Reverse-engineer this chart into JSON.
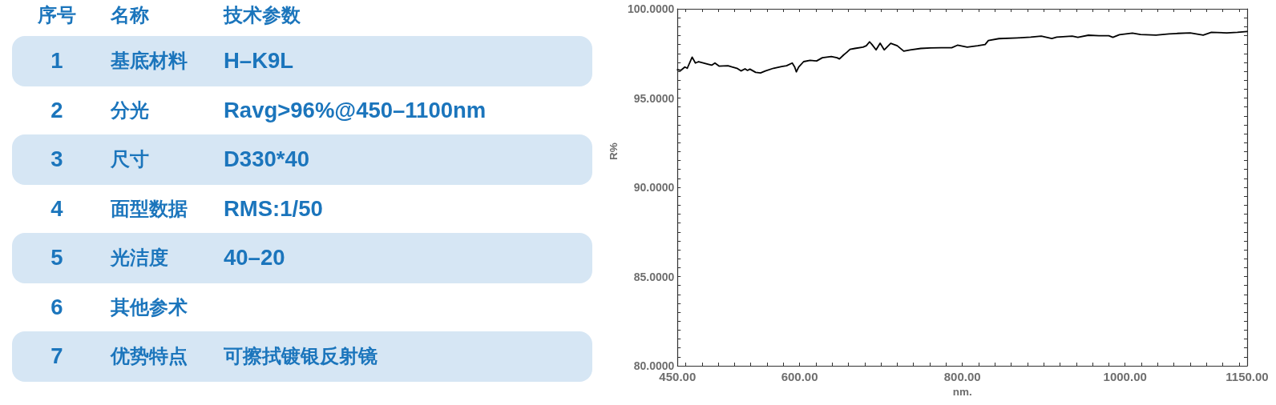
{
  "chart_data": [
    {
      "type": "heatmap",
      "ylabel": "序号",
      "categories": [
        "名称",
        "技术参数"
      ],
      "y_categories": [
        "1",
        "2",
        "3",
        "4",
        "5",
        "6",
        "7"
      ],
      "cells": [
        [
          null,
          null
        ],
        [
          null,
          null
        ],
        [
          null,
          null
        ],
        [
          null,
          null
        ],
        [
          null,
          null
        ],
        [
          null,
          null
        ],
        [
          null,
          null
        ]
      ],
      "cell_labels": [
        [
          "基底材料",
          "H–K9L"
        ],
        [
          "分光",
          "Ravg>96%@450–1100nm"
        ],
        [
          "尺寸",
          "D330*40"
        ],
        [
          "面型数据",
          "RMS:1/50"
        ],
        [
          "光洁度",
          "40–20"
        ],
        [
          "其他参术",
          null
        ],
        [
          "优势特点",
          "可擦拭镀银反射镜"
        ]
      ]
    },
    {
      "type": "line",
      "xlabel": "nm.",
      "ylabel": "R%",
      "color": "#000000",
      "marker": "none",
      "x": [
        450,
        454,
        459,
        462,
        468,
        472,
        476,
        488,
        492,
        496,
        501,
        512,
        517,
        523,
        528,
        533,
        536,
        539,
        546,
        552,
        558,
        568,
        578,
        584,
        591,
        594,
        596,
        599,
        605,
        613,
        621,
        628,
        639,
        646,
        649,
        654,
        658,
        662,
        668,
        678,
        682,
        686,
        689,
        694,
        699,
        704,
        712,
        720,
        728,
        736,
        749,
        761,
        774,
        787,
        794,
        806,
        819,
        828,
        832,
        845,
        868,
        884,
        897,
        910,
        916,
        935,
        942,
        955,
        968,
        980,
        985,
        993,
        1009,
        1019,
        1038,
        1054,
        1064,
        1080,
        1096,
        1106,
        1125,
        1138,
        1150
      ],
      "values": [
        96.59,
        96.55,
        96.74,
        96.67,
        97.29,
        96.96,
        97.04,
        96.89,
        96.84,
        96.96,
        96.79,
        96.81,
        96.74,
        96.67,
        96.52,
        96.64,
        96.55,
        96.62,
        96.44,
        96.41,
        96.52,
        96.67,
        96.77,
        96.81,
        96.96,
        96.74,
        96.47,
        96.74,
        97.04,
        97.11,
        97.08,
        97.26,
        97.33,
        97.26,
        97.19,
        97.41,
        97.56,
        97.73,
        97.78,
        97.85,
        97.93,
        98.15,
        98.0,
        97.7,
        98.07,
        97.7,
        98.07,
        97.93,
        97.63,
        97.7,
        97.78,
        97.81,
        97.82,
        97.82,
        97.96,
        97.85,
        97.93,
        98.0,
        98.22,
        98.33,
        98.37,
        98.41,
        98.47,
        98.34,
        98.41,
        98.47,
        98.4,
        98.52,
        98.49,
        98.49,
        98.4,
        98.55,
        98.64,
        98.56,
        98.53,
        98.59,
        98.62,
        98.65,
        98.53,
        98.68,
        98.65,
        98.68,
        98.73
      ],
      "xlim": [
        450,
        1150
      ],
      "xticks": [
        {
          "value": 450,
          "label": "450.00"
        },
        {
          "value": 460,
          "label": null
        },
        {
          "value": 480,
          "label": null
        },
        {
          "value": 500,
          "label": null
        },
        {
          "value": 520,
          "label": null
        },
        {
          "value": 540,
          "label": null
        },
        {
          "value": 560,
          "label": null
        },
        {
          "value": 580,
          "label": null
        },
        {
          "value": 600,
          "label": "600.00"
        },
        {
          "value": 620,
          "label": null
        },
        {
          "value": 640,
          "label": null
        },
        {
          "value": 660,
          "label": null
        },
        {
          "value": 680,
          "label": null
        },
        {
          "value": 700,
          "label": null
        },
        {
          "value": 720,
          "label": null
        },
        {
          "value": 740,
          "label": null
        },
        {
          "value": 760,
          "label": null
        },
        {
          "value": 780,
          "label": null
        },
        {
          "value": 800,
          "label": "800.00"
        },
        {
          "value": 820,
          "label": null
        },
        {
          "value": 840,
          "label": null
        },
        {
          "value": 860,
          "label": null
        },
        {
          "value": 880,
          "label": null
        },
        {
          "value": 900,
          "label": null
        },
        {
          "value": 920,
          "label": null
        },
        {
          "value": 940,
          "label": null
        },
        {
          "value": 960,
          "label": null
        },
        {
          "value": 980,
          "label": null
        },
        {
          "value": 1000,
          "label": "1000.00"
        },
        {
          "value": 1020,
          "label": null
        },
        {
          "value": 1040,
          "label": null
        },
        {
          "value": 1060,
          "label": null
        },
        {
          "value": 1080,
          "label": null
        },
        {
          "value": 1100,
          "label": null
        },
        {
          "value": 1120,
          "label": null
        },
        {
          "value": 1140,
          "label": null
        },
        {
          "value": 1150,
          "label": "1150.00"
        }
      ],
      "ylim": [
        80,
        100
      ],
      "yticks": [
        {
          "value": 80,
          "label": "80.0000"
        },
        {
          "value": 80.5,
          "label": null
        },
        {
          "value": 81,
          "label": null
        },
        {
          "value": 81.5,
          "label": null
        },
        {
          "value": 82,
          "label": null
        },
        {
          "value": 82.5,
          "label": null
        },
        {
          "value": 83,
          "label": null
        },
        {
          "value": 83.5,
          "label": null
        },
        {
          "value": 84,
          "label": null
        },
        {
          "value": 84.5,
          "label": null
        },
        {
          "value": 85,
          "label": "85.0000"
        },
        {
          "value": 85.5,
          "label": null
        },
        {
          "value": 86,
          "label": null
        },
        {
          "value": 86.5,
          "label": null
        },
        {
          "value": 87,
          "label": null
        },
        {
          "value": 87.5,
          "label": null
        },
        {
          "value": 88,
          "label": null
        },
        {
          "value": 88.5,
          "label": null
        },
        {
          "value": 89,
          "label": null
        },
        {
          "value": 89.5,
          "label": null
        },
        {
          "value": 90,
          "label": "90.0000"
        },
        {
          "value": 90.5,
          "label": null
        },
        {
          "value": 91,
          "label": null
        },
        {
          "value": 91.5,
          "label": null
        },
        {
          "value": 92,
          "label": null
        },
        {
          "value": 92.5,
          "label": null
        },
        {
          "value": 93,
          "label": null
        },
        {
          "value": 93.5,
          "label": null
        },
        {
          "value": 94,
          "label": null
        },
        {
          "value": 94.5,
          "label": null
        },
        {
          "value": 95,
          "label": "95.0000"
        },
        {
          "value": 95.5,
          "label": null
        },
        {
          "value": 96,
          "label": null
        },
        {
          "value": 96.5,
          "label": null
        },
        {
          "value": 97,
          "label": null
        },
        {
          "value": 97.5,
          "label": null
        },
        {
          "value": 98,
          "label": null
        },
        {
          "value": 98.5,
          "label": null
        },
        {
          "value": 99,
          "label": null
        },
        {
          "value": 99.5,
          "label": null
        },
        {
          "value": 100,
          "label": "100.0000"
        }
      ]
    }
  ]
}
